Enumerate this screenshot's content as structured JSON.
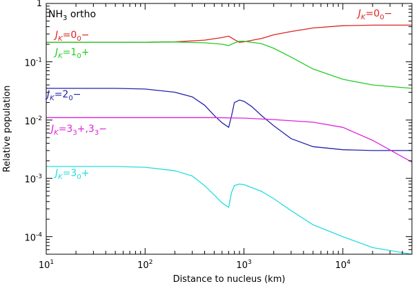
{
  "chart_data": {
    "type": "line",
    "title": "NH3 ortho",
    "title_main": "NH",
    "title_sub": "3",
    "title_rest": " ortho",
    "xlabel": "Distance to nucleus (km)",
    "ylabel": "Relative population",
    "xscale": "log",
    "yscale": "log",
    "xlim": [
      10,
      50000
    ],
    "ylim": [
      5e-05,
      1
    ],
    "x_ticks": [
      {
        "v": 10,
        "base": "10",
        "exp": "1"
      },
      {
        "v": 100,
        "base": "10",
        "exp": "2"
      },
      {
        "v": 1000,
        "base": "10",
        "exp": "3"
      },
      {
        "v": 10000,
        "base": "10",
        "exp": "4"
      }
    ],
    "y_ticks": [
      {
        "v": 1,
        "base": "1",
        "exp": ""
      },
      {
        "v": 0.1,
        "base": "10",
        "exp": "-1"
      },
      {
        "v": 0.01,
        "base": "10",
        "exp": "-2"
      },
      {
        "v": 0.001,
        "base": "10",
        "exp": "-3"
      },
      {
        "v": 0.0001,
        "base": "10",
        "exp": "-4"
      }
    ],
    "series": [
      {
        "name": "J_K=0_0-",
        "color": "#dd2222",
        "x": [
          10,
          50,
          100,
          200,
          400,
          600,
          700,
          800,
          900,
          1000,
          1500,
          2000,
          3000,
          5000,
          10000,
          20000,
          50000
        ],
        "y": [
          0.215,
          0.215,
          0.216,
          0.22,
          0.235,
          0.26,
          0.275,
          0.24,
          0.215,
          0.22,
          0.25,
          0.29,
          0.33,
          0.38,
          0.415,
          0.425,
          0.425
        ]
      },
      {
        "name": "J_K=1_0+",
        "color": "#22cc22",
        "x": [
          10,
          50,
          100,
          200,
          400,
          600,
          700,
          800,
          900,
          1000,
          1500,
          2000,
          3000,
          5000,
          10000,
          20000,
          50000
        ],
        "y": [
          0.215,
          0.215,
          0.216,
          0.218,
          0.212,
          0.2,
          0.19,
          0.21,
          0.225,
          0.225,
          0.205,
          0.17,
          0.12,
          0.075,
          0.05,
          0.04,
          0.035
        ]
      },
      {
        "name": "J_K=2_0-",
        "color": "#2222aa",
        "x": [
          10,
          50,
          100,
          200,
          300,
          400,
          500,
          600,
          700,
          750,
          800,
          900,
          1000,
          1200,
          1500,
          2000,
          3000,
          5000,
          10000,
          20000,
          50000
        ],
        "y": [
          0.035,
          0.035,
          0.034,
          0.03,
          0.025,
          0.018,
          0.012,
          0.009,
          0.0075,
          0.012,
          0.02,
          0.022,
          0.021,
          0.017,
          0.012,
          0.008,
          0.0048,
          0.0035,
          0.0031,
          0.003,
          0.003
        ]
      },
      {
        "name": "J_K=3_3+,3_3-",
        "color": "#dd22dd",
        "x": [
          10,
          100,
          500,
          1000,
          2000,
          5000,
          10000,
          20000,
          50000
        ],
        "y": [
          0.011,
          0.011,
          0.011,
          0.0108,
          0.0102,
          0.0092,
          0.0075,
          0.0045,
          0.0019
        ]
      },
      {
        "name": "J_K=3_0+",
        "color": "#22dddd",
        "x": [
          10,
          50,
          100,
          200,
          300,
          400,
          500,
          600,
          700,
          750,
          800,
          900,
          1000,
          1500,
          2000,
          3000,
          5000,
          10000,
          20000,
          50000
        ],
        "y": [
          0.0016,
          0.0016,
          0.00155,
          0.00135,
          0.0011,
          0.00075,
          0.00052,
          0.00038,
          0.00032,
          0.00058,
          0.00075,
          0.0008,
          0.00078,
          0.0006,
          0.00045,
          0.00028,
          0.00016,
          0.0001,
          6.5e-05,
          5e-05
        ]
      }
    ],
    "labels": [
      {
        "series": 0,
        "main": "J",
        "sub1": "K",
        "mid": "=0",
        "sub2": "0",
        "tail": "−",
        "color": "#dd2222"
      },
      {
        "series": 0,
        "main": "J",
        "sub1": "K",
        "mid": "=0",
        "sub2": "0",
        "tail": "−",
        "color": "#dd2222"
      },
      {
        "series": 1,
        "main": "J",
        "sub1": "K",
        "mid": "=1",
        "sub2": "0",
        "tail": "+",
        "color": "#22cc22"
      },
      {
        "series": 2,
        "main": "J",
        "sub1": "K",
        "mid": "=2",
        "sub2": "0",
        "tail": "−",
        "color": "#2222aa"
      },
      {
        "series": 3,
        "main": "J",
        "sub1": "K",
        "mid": "=3",
        "sub2": "3",
        "tail": "+,3",
        "sub3": "3",
        "tail2": "−",
        "color": "#dd22dd"
      },
      {
        "series": 4,
        "main": "J",
        "sub1": "K",
        "mid": "=3",
        "sub2": "0",
        "tail": "+",
        "color": "#22dddd"
      }
    ]
  }
}
